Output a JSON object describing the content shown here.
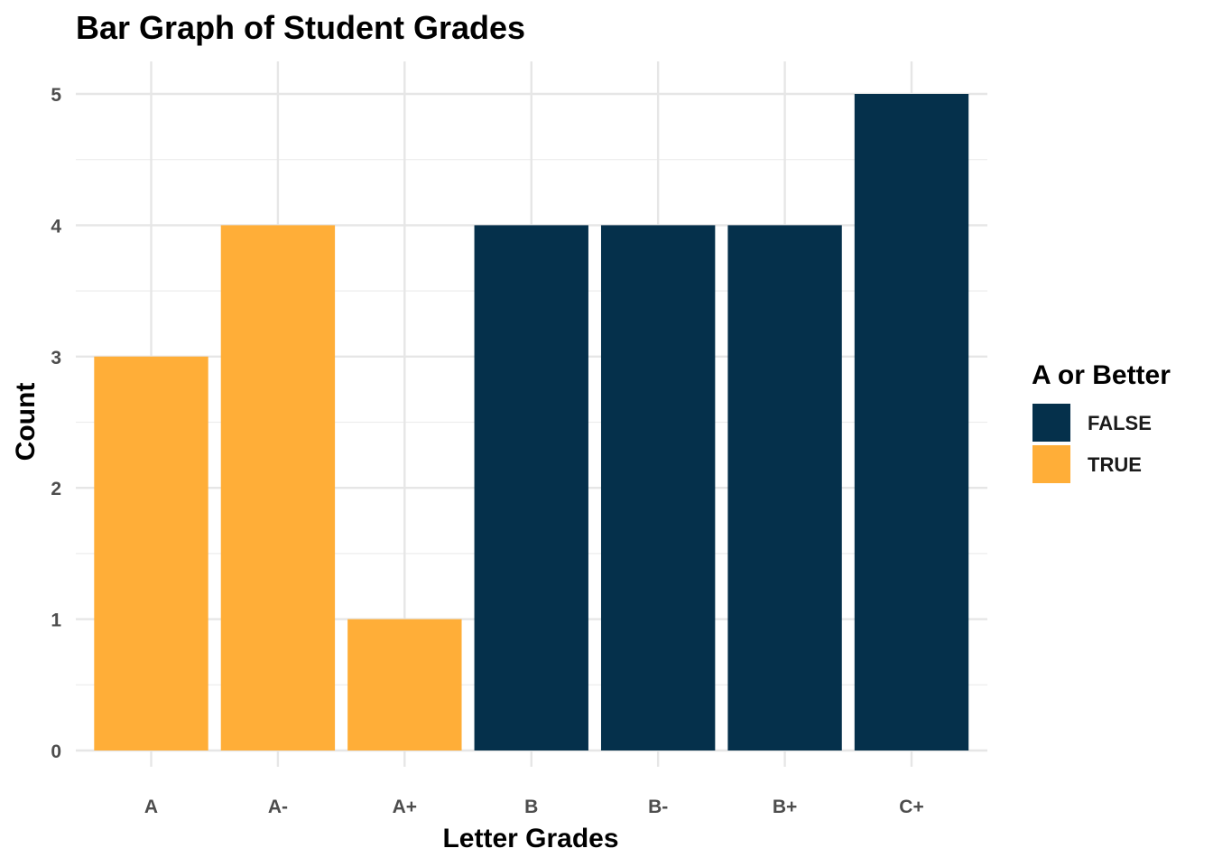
{
  "chart_data": {
    "type": "bar",
    "title": "Bar Graph of Student Grades",
    "xlabel": "Letter Grades",
    "ylabel": "Count",
    "categories": [
      "A",
      "A-",
      "A+",
      "B",
      "B-",
      "B+",
      "C+"
    ],
    "values": [
      3,
      4,
      1,
      4,
      4,
      4,
      5
    ],
    "groups": [
      "TRUE",
      "TRUE",
      "TRUE",
      "FALSE",
      "FALSE",
      "FALSE",
      "FALSE"
    ],
    "ylim": [
      0,
      5
    ],
    "yticks": [
      0,
      1,
      2,
      3,
      4,
      5
    ],
    "grid": true,
    "legend": {
      "title": "A or Better",
      "placement": "right",
      "entries": [
        {
          "label": "FALSE",
          "color": "#05304b"
        },
        {
          "label": "TRUE",
          "color": "#ffae38"
        }
      ]
    }
  }
}
